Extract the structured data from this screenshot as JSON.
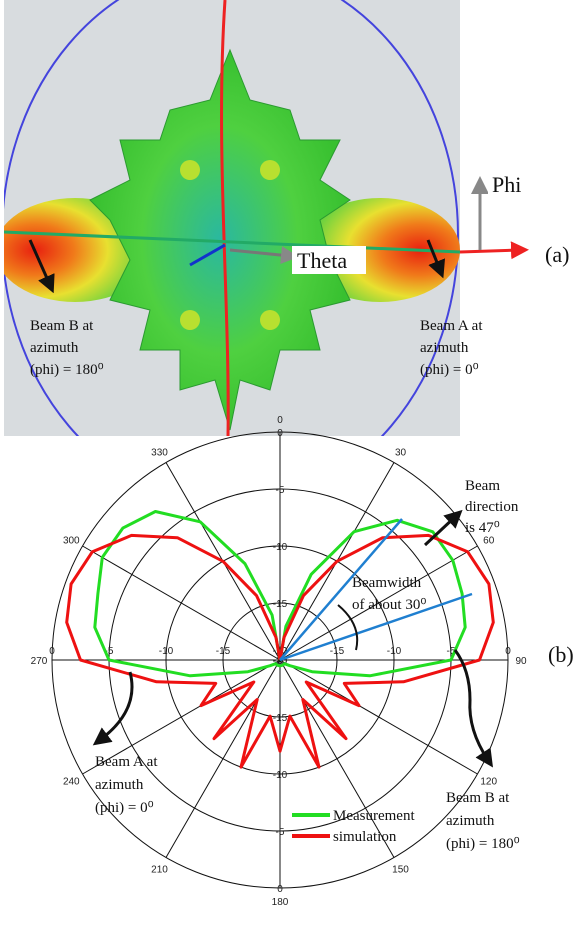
{
  "panel_a": {
    "label": "(a)",
    "phi_label": "Phi",
    "theta_label": "Theta",
    "beam_b": [
      "Beam B at",
      "azimuth",
      "(phi) = 180⁰"
    ],
    "beam_a": [
      "Beam A at",
      "azimuth",
      "(phi) =  0⁰"
    ]
  },
  "chart_data": {
    "type": "polar",
    "panel_label": "(b)",
    "theta": [
      0,
      10,
      20,
      30,
      40,
      50,
      60,
      70,
      80,
      90,
      100,
      110,
      120,
      130,
      140,
      150,
      160,
      170,
      180,
      190,
      200,
      210,
      220,
      230,
      240,
      250,
      260,
      270,
      280,
      290,
      300,
      310,
      320,
      330,
      340,
      350,
      360
    ],
    "rlim": [
      -20,
      0
    ],
    "rticks": [
      -20,
      -15,
      -10,
      -5,
      0
    ],
    "angle_ticks": [
      0,
      30,
      60,
      90,
      120,
      150,
      180,
      210,
      240,
      270,
      300,
      330
    ],
    "series": [
      {
        "name": "Measurement",
        "color": "#22dd22",
        "values": [
          -20,
          -17,
          -12,
          -7,
          -4,
          -2.5,
          -2.5,
          -3,
          -3.5,
          -5,
          -12,
          -17,
          -19,
          -19.5,
          -19.5,
          -19.5,
          -19.5,
          -19.5,
          -19.5,
          -19.5,
          -19.5,
          -19.5,
          -19.5,
          -19.5,
          -19,
          -17,
          -12,
          -5,
          -3.5,
          -3,
          -2,
          -2,
          -3,
          -6,
          -11,
          -16,
          -20
        ]
      },
      {
        "name": "simulation",
        "color": "#ee1111",
        "values": [
          -20,
          -18,
          -14,
          -10,
          -6,
          -3,
          -1,
          -0.5,
          -1,
          -2.5,
          -9,
          -14,
          -12,
          -17,
          -11,
          -16,
          -10,
          -15,
          -12,
          -15,
          -10,
          -16,
          -11,
          -17,
          -12,
          -14,
          -9,
          -2.5,
          -1,
          -0.5,
          -1,
          -3,
          -6,
          -10,
          -14,
          -18,
          -20
        ]
      }
    ],
    "annotations": {
      "beam_direction": [
        "Beam",
        "direction",
        "is 47⁰"
      ],
      "beamwidth": [
        "Beamwidth",
        "of about 30⁰"
      ],
      "beam_a": [
        "Beam A at",
        "azimuth",
        "(phi) =  0⁰"
      ],
      "beam_b": [
        "Beam B at",
        "azimuth",
        "(phi) = 180⁰"
      ]
    }
  }
}
